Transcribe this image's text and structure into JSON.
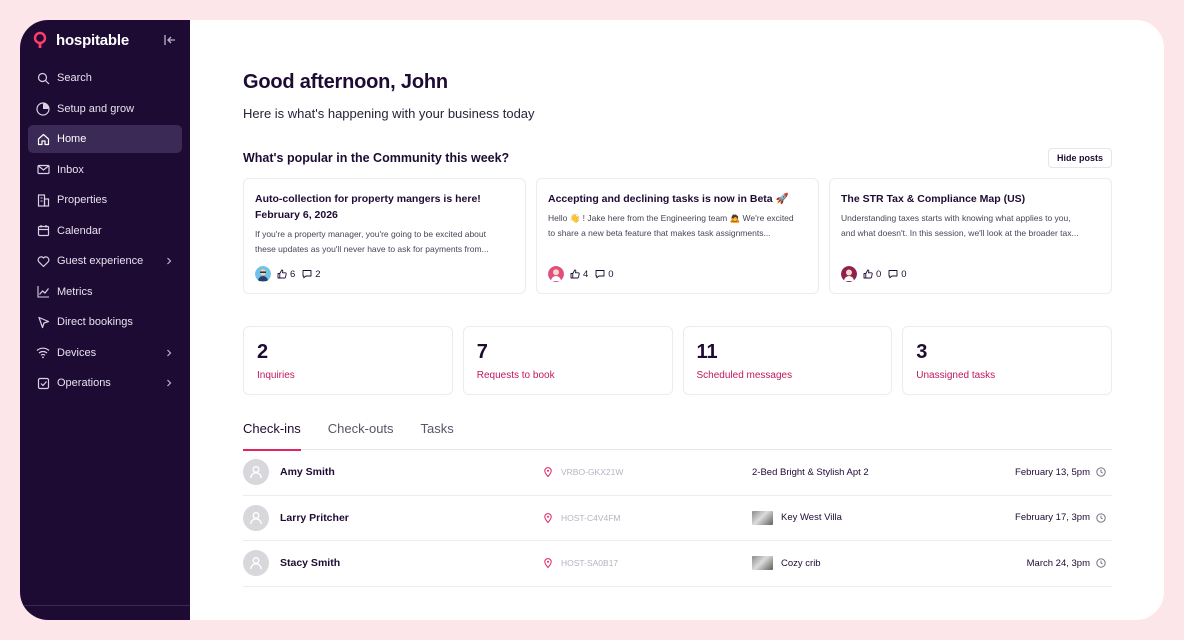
{
  "brand": {
    "name": "hospitable",
    "logo_icon": "hospitable-logo-icon",
    "accent": "#e0245e"
  },
  "sidebar": {
    "items": [
      {
        "label": "Search",
        "icon": "search-icon"
      },
      {
        "label": "Setup and grow",
        "icon": "progress-circle-icon"
      },
      {
        "label": "Home",
        "icon": "home-icon",
        "active": true
      },
      {
        "label": "Inbox",
        "icon": "mail-icon"
      },
      {
        "label": "Properties",
        "icon": "building-icon"
      },
      {
        "label": "Calendar",
        "icon": "calendar-icon"
      },
      {
        "label": "Guest experience",
        "icon": "heart-icon",
        "has_submenu": true
      },
      {
        "label": "Metrics",
        "icon": "chart-line-icon"
      },
      {
        "label": "Direct bookings",
        "icon": "cursor-arrow-icon"
      },
      {
        "label": "Devices",
        "icon": "wifi-icon",
        "has_submenu": true
      },
      {
        "label": "Operations",
        "icon": "checkbox-icon",
        "has_submenu": true
      }
    ]
  },
  "header": {
    "greeting": "Good afternoon, John",
    "subtitle": "Here is what's happening with your business today"
  },
  "community": {
    "title": "What's popular in the Community this week?",
    "hide_label": "Hide posts",
    "posts": [
      {
        "title": "Auto-collection for property mangers is here!",
        "title_line2": "February 6, 2026",
        "excerpt_line1": "If you're a property manager, you're going to be excited about",
        "excerpt_line2": "these updates as you'll never have to ask for payments from...",
        "likes": "6",
        "comments": "2"
      },
      {
        "title": "Accepting and declining tasks is now in Beta 🚀",
        "title_line2": "",
        "excerpt_line1": "Hello 👋 ! Jake here from the Engineering team 🙇 We're excited",
        "excerpt_line2": "to share a new beta feature that makes task assignments...",
        "likes": "4",
        "comments": "0"
      },
      {
        "title": "The STR Tax & Compliance Map (US)",
        "title_line2": "",
        "excerpt_line1": "Understanding taxes starts with knowing what applies to you,",
        "excerpt_line2": "and what doesn't. In this session, we'll look at the broader tax...",
        "likes": "0",
        "comments": "0"
      }
    ]
  },
  "stats": [
    {
      "value": "2",
      "label": "Inquiries"
    },
    {
      "value": "7",
      "label": "Requests to book"
    },
    {
      "value": "11",
      "label": "Scheduled messages"
    },
    {
      "value": "3",
      "label": "Unassigned tasks"
    }
  ],
  "tabs": [
    {
      "label": "Check-ins",
      "active": true
    },
    {
      "label": "Check-outs"
    },
    {
      "label": "Tasks"
    }
  ],
  "checkins": [
    {
      "name": "Amy Smith",
      "booking": "VRBO-GKX21W",
      "property": "2-Bed Bright & Stylish Apt 2",
      "has_thumb": false,
      "date": "February 13, 5pm"
    },
    {
      "name": "Larry Pritcher",
      "booking": "HOST-C4V4FM",
      "property": "Key West Villa",
      "has_thumb": true,
      "date": "February 17, 3pm"
    },
    {
      "name": "Stacy Smith",
      "booking": "HOST-SA0B17",
      "property": "Cozy crib",
      "has_thumb": true,
      "date": "March 24, 3pm"
    }
  ]
}
